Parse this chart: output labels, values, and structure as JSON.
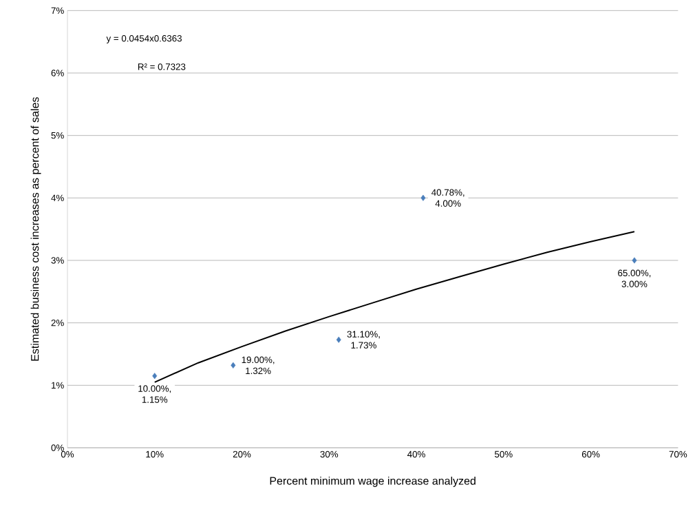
{
  "chart_data": {
    "type": "scatter",
    "xlabel": "Percent minimum wage increase analyzed",
    "ylabel": "Estimated business cost increases as percent of sales",
    "series": [
      {
        "color": "#4a7ebb",
        "marker": "diamond",
        "x": [
          10.0,
          19.0,
          31.1,
          40.78,
          65.0
        ],
        "values": [
          1.15,
          1.32,
          1.73,
          4.0,
          3.0
        ],
        "value_labels": [
          "10.00%, 1.15%",
          "19.00%, 1.32%",
          "31.10%, 1.73%",
          "40.78%, 4.00%",
          "65.00%, 3.00%"
        ]
      },
      {
        "type": "line",
        "color": "#000000",
        "marker": "none",
        "line_style": "solid",
        "x": [
          10,
          15,
          20,
          25,
          30,
          35,
          40,
          45,
          50,
          55,
          60,
          65
        ],
        "values": [
          1.05,
          1.36,
          1.62,
          1.87,
          2.1,
          2.32,
          2.54,
          2.74,
          2.94,
          3.13,
          3.3,
          3.46
        ]
      }
    ],
    "xlim": [
      0,
      70
    ],
    "ylim": [
      0,
      7
    ],
    "xticks": [
      {
        "value": 0,
        "label": "0%"
      },
      {
        "value": 10,
        "label": "10%"
      },
      {
        "value": 20,
        "label": "20%"
      },
      {
        "value": 30,
        "label": "30%"
      },
      {
        "value": 40,
        "label": "40%"
      },
      {
        "value": 50,
        "label": "50%"
      },
      {
        "value": 60,
        "label": "60%"
      },
      {
        "value": 70,
        "label": "70%"
      }
    ],
    "yticks": [
      {
        "value": 0,
        "label": "0%"
      },
      {
        "value": 1,
        "label": "1%"
      },
      {
        "value": 2,
        "label": "2%"
      },
      {
        "value": 3,
        "label": "3%"
      },
      {
        "value": 4,
        "label": "4%"
      },
      {
        "value": 5,
        "label": "5%"
      },
      {
        "value": 6,
        "label": "6%"
      },
      {
        "value": 7,
        "label": "7%"
      }
    ],
    "grid": "y",
    "annotations": [
      "y = 0.0454x0.6363",
      "R² = 0.7323"
    ]
  }
}
